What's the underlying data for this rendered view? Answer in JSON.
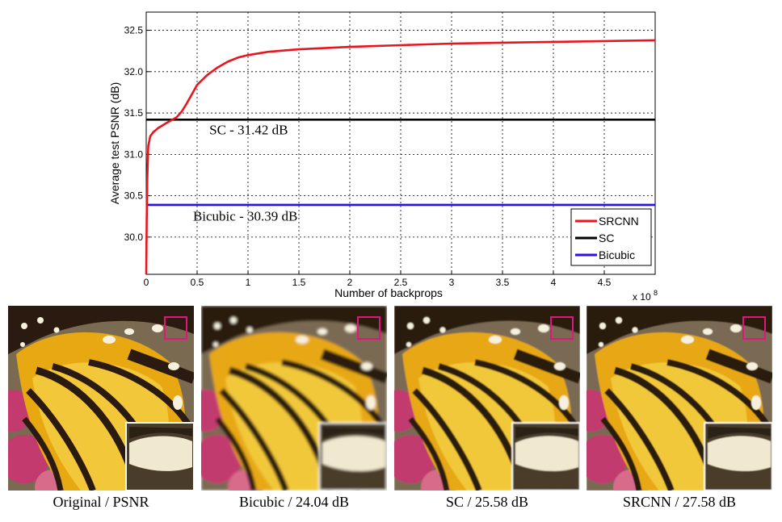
{
  "chart_data": {
    "type": "line",
    "title": "",
    "xlabel": "Number of backprops",
    "ylabel": "Average test PSNR (dB)",
    "x_multiplier_label": "x 10",
    "x_multiplier_exp": "8",
    "xlim": [
      0,
      5
    ],
    "ylim": [
      29.55,
      32.72
    ],
    "xticks": [
      0,
      0.5,
      1,
      1.5,
      2,
      2.5,
      3,
      3.5,
      4,
      4.5
    ],
    "xtick_labels": [
      "0",
      "0.5",
      "1",
      "1.5",
      "2",
      "2.5",
      "3",
      "3.5",
      "4",
      "4.5"
    ],
    "yticks": [
      30.0,
      30.5,
      31.0,
      31.5,
      32.0,
      32.5
    ],
    "ytick_labels": [
      "30.0",
      "30.5",
      "31.0",
      "31.5",
      "32.0",
      "32.5"
    ],
    "grid": true,
    "legend_position": "bottom-right",
    "series": [
      {
        "name": "SRCNN",
        "color": "#e8141e",
        "x": [
          0,
          0.005,
          0.01,
          0.02,
          0.04,
          0.07,
          0.12,
          0.2,
          0.3,
          0.35,
          0.4,
          0.5,
          0.6,
          0.7,
          0.8,
          0.9,
          1.0,
          1.2,
          1.5,
          2.0,
          2.5,
          3.0,
          3.5,
          4.0,
          4.5,
          5.0
        ],
        "y": [
          29.55,
          30.2,
          30.7,
          31.1,
          31.22,
          31.27,
          31.32,
          31.38,
          31.45,
          31.52,
          31.62,
          31.84,
          31.96,
          32.05,
          32.12,
          32.17,
          32.2,
          32.24,
          32.27,
          32.3,
          32.32,
          32.34,
          32.35,
          32.36,
          32.37,
          32.38
        ]
      },
      {
        "name": "SC",
        "color": "#000000",
        "x": [
          0,
          5
        ],
        "y": [
          31.42,
          31.42
        ]
      },
      {
        "name": "Bicubic",
        "color": "#2a0fe8",
        "x": [
          0,
          5
        ],
        "y": [
          30.39,
          30.39
        ]
      }
    ],
    "annotations": [
      {
        "text": "SC - 31.42 dB",
        "x": 0.62,
        "y": 31.24
      },
      {
        "text": "Bicubic - 30.39 dB",
        "x": 0.46,
        "y": 30.2
      }
    ]
  },
  "panels": [
    {
      "caption": "Original / PSNR",
      "blur": 0
    },
    {
      "caption": "Bicubic / 24.04 dB",
      "blur": 1.6
    },
    {
      "caption": "SC / 25.58 dB",
      "blur": 0.9
    },
    {
      "caption": "SRCNN / 27.58 dB",
      "blur": 0.5
    }
  ],
  "colors": {
    "wing_orange": "#e8a812",
    "wing_yellow": "#f2c83a",
    "vein_dark": "#2a1a10",
    "flower_pink": "#c23a6e",
    "background_brown": "#7a6a52",
    "highlight_box": "#e0157e"
  }
}
